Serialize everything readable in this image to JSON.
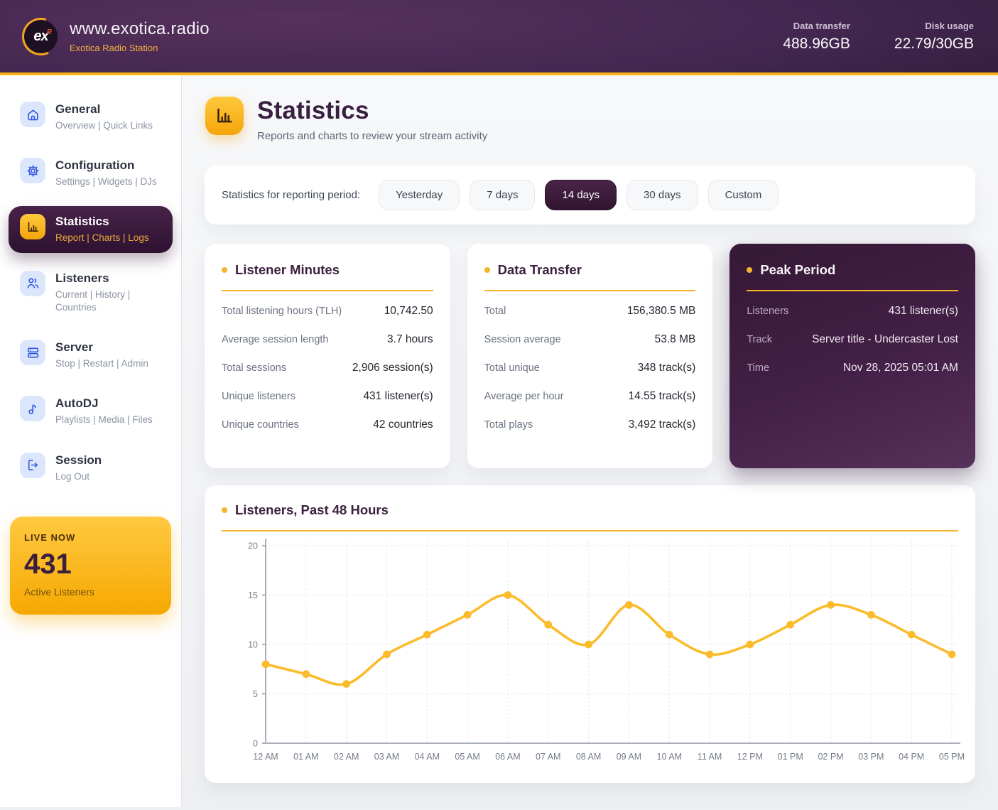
{
  "header": {
    "logo_text": "ex",
    "logo_mark": "R",
    "site_title": "www.exotica.radio",
    "station_name": "Exotica Radio Station",
    "stats": [
      {
        "label": "Data transfer",
        "value": "488.96GB"
      },
      {
        "label": "Disk usage",
        "value": "22.79/30GB"
      }
    ]
  },
  "sidebar": {
    "items": [
      {
        "id": "general",
        "icon": "home-icon",
        "title": "General",
        "subtitle": "Overview | Quick Links",
        "active": false
      },
      {
        "id": "configuration",
        "icon": "gear-icon",
        "title": "Configuration",
        "subtitle": "Settings | Widgets | DJs",
        "active": false
      },
      {
        "id": "statistics",
        "icon": "bar-chart-icon",
        "title": "Statistics",
        "subtitle": "Report | Charts | Logs",
        "active": true
      },
      {
        "id": "listeners",
        "icon": "users-icon",
        "title": "Listeners",
        "subtitle": "Current | History | Countries",
        "active": false
      },
      {
        "id": "server",
        "icon": "server-icon",
        "title": "Server",
        "subtitle": "Stop | Restart | Admin",
        "active": false
      },
      {
        "id": "autodj",
        "icon": "music-note-icon",
        "title": "AutoDJ",
        "subtitle": "Playlists | Media | Files",
        "active": false
      },
      {
        "id": "session",
        "icon": "logout-icon",
        "title": "Session",
        "subtitle": "Log Out",
        "active": false
      }
    ],
    "live_now": {
      "label": "LIVE NOW",
      "count": "431",
      "sublabel": "Active Listeners"
    }
  },
  "page": {
    "title": "Statistics",
    "subtitle": "Reports and charts to review your stream activity"
  },
  "period_selector": {
    "label": "Statistics for reporting period:",
    "options": [
      {
        "label": "Yesterday",
        "active": false
      },
      {
        "label": "7 days",
        "active": false
      },
      {
        "label": "14 days",
        "active": true
      },
      {
        "label": "30 days",
        "active": false
      },
      {
        "label": "Custom",
        "active": false
      }
    ]
  },
  "cards": [
    {
      "title": "Listener Minutes",
      "theme": "light",
      "rows": [
        {
          "label": "Total listening hours (TLH)",
          "value": "10,742.50"
        },
        {
          "label": "Average session length",
          "value": "3.7 hours"
        },
        {
          "label": "Total sessions",
          "value": "2,906 session(s)"
        },
        {
          "label": "Unique listeners",
          "value": "431 listener(s)"
        },
        {
          "label": "Unique countries",
          "value": "42 countries"
        }
      ]
    },
    {
      "title": "Data Transfer",
      "theme": "light",
      "rows": [
        {
          "label": "Total",
          "value": "156,380.5 MB"
        },
        {
          "label": "Session average",
          "value": "53.8 MB"
        },
        {
          "label": "Total unique",
          "value": "348 track(s)"
        },
        {
          "label": "Average per hour",
          "value": "14.55 track(s)"
        },
        {
          "label": "Total plays",
          "value": "3,492 track(s)"
        }
      ]
    },
    {
      "title": "Peak Period",
      "theme": "dark",
      "rows": [
        {
          "label": "Listeners",
          "value": "431 listener(s)"
        },
        {
          "label": "Track",
          "value": "Server title - Undercaster Lost"
        },
        {
          "label": "Time",
          "value": "Nov 28, 2025 05:01 AM"
        }
      ]
    }
  ],
  "chart_data": {
    "type": "line",
    "title": "Listeners, Past 48 Hours",
    "categories": [
      "12 AM",
      "01 AM",
      "02 AM",
      "03 AM",
      "04 AM",
      "05 AM",
      "06 AM",
      "07 AM",
      "08 AM",
      "09 AM",
      "10 AM",
      "11 AM",
      "12 PM",
      "01 PM",
      "02 PM",
      "03 PM",
      "04 PM",
      "05 PM"
    ],
    "values": [
      8,
      7,
      6,
      9,
      11,
      13,
      15,
      12,
      10,
      14,
      11,
      9,
      10,
      12,
      14,
      13,
      11,
      9
    ],
    "xlabel": "",
    "ylabel": "",
    "ylim": [
      0,
      20
    ],
    "yticks": [
      0,
      5,
      10,
      15,
      20
    ],
    "grid": true,
    "legend": false,
    "line_color": "#FBBC2C"
  },
  "colors": {
    "accent_yellow": "#F6B42B",
    "brand_purple_dark": "#2D1230",
    "brand_purple": "#48234A",
    "icon_blue": "#2F54E0",
    "icon_blue_bg": "#DBE6FD",
    "live_gradient_top": "#FFC941",
    "live_gradient_bottom": "#F6A801"
  }
}
